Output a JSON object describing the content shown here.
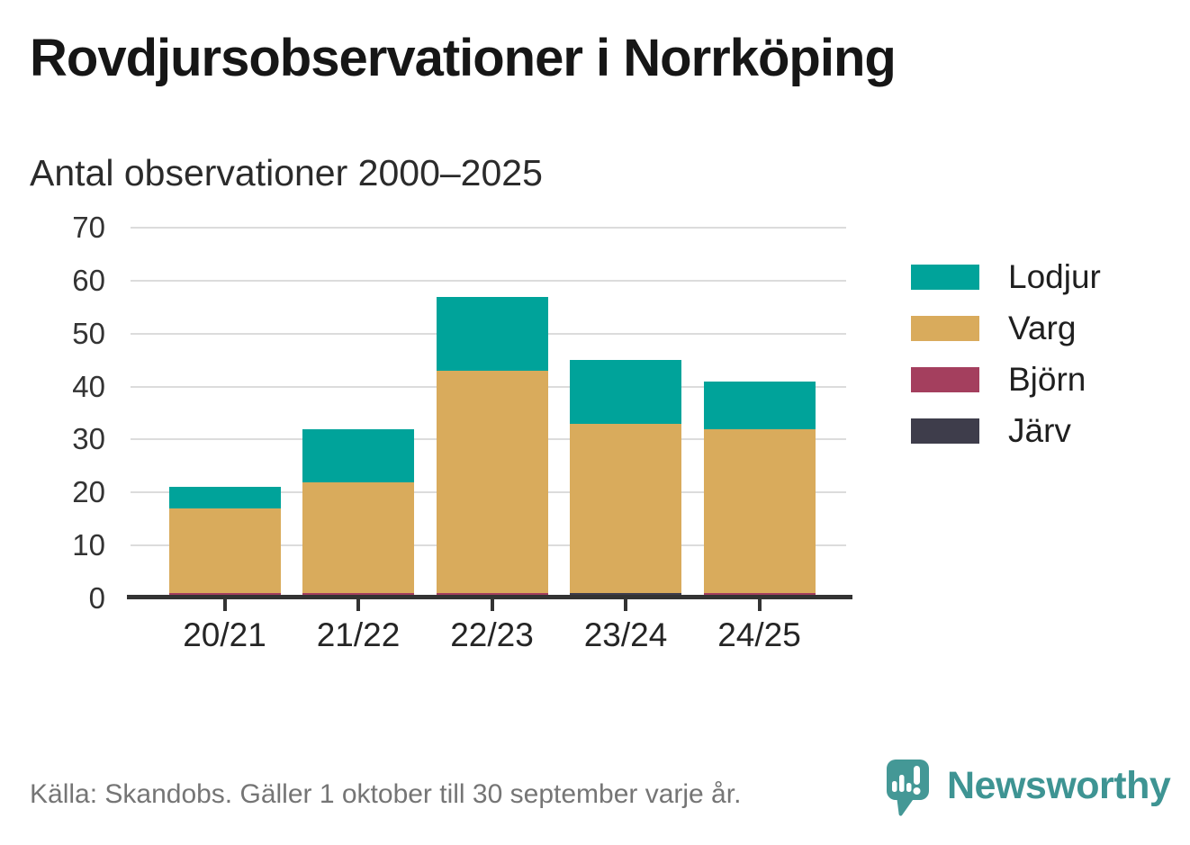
{
  "header": {
    "title": "Rovdjursobservationer i Norrköping",
    "subtitle": "Antal observationer 2000–2025"
  },
  "chart_data": {
    "type": "bar",
    "stacked": true,
    "title": "Rovdjursobservationer i Norrköping",
    "subtitle": "Antal observationer 2000–2025",
    "categories": [
      "20/21",
      "21/22",
      "22/23",
      "23/24",
      "24/25"
    ],
    "series": [
      {
        "name": "Järv",
        "color": "#3E3D4B",
        "values": [
          0,
          0,
          0,
          1,
          0
        ]
      },
      {
        "name": "Björn",
        "color": "#A43F5E",
        "values": [
          1,
          1,
          1,
          0,
          1
        ]
      },
      {
        "name": "Varg",
        "color": "#D9AB5C",
        "values": [
          16,
          21,
          42,
          32,
          31
        ]
      },
      {
        "name": "Lodjur",
        "color": "#00A39A",
        "values": [
          4,
          10,
          14,
          12,
          9
        ]
      }
    ],
    "totals": [
      21,
      32,
      57,
      45,
      41
    ],
    "xlabel": "",
    "ylabel": "",
    "ylim": [
      0,
      70
    ],
    "yticks": [
      0,
      10,
      20,
      30,
      40,
      50,
      60,
      70
    ],
    "legend_order": [
      "Lodjur",
      "Varg",
      "Björn",
      "Järv"
    ],
    "legend_position": "right",
    "grid": true,
    "grid_color": "#dcdcdc",
    "axis_color": "#333333"
  },
  "footer": {
    "source": "Källa: Skandobs. Gäller 1 oktober till 30 september varje år.",
    "logo_text": "Newsworthy",
    "logo_color": "#3E9493"
  }
}
